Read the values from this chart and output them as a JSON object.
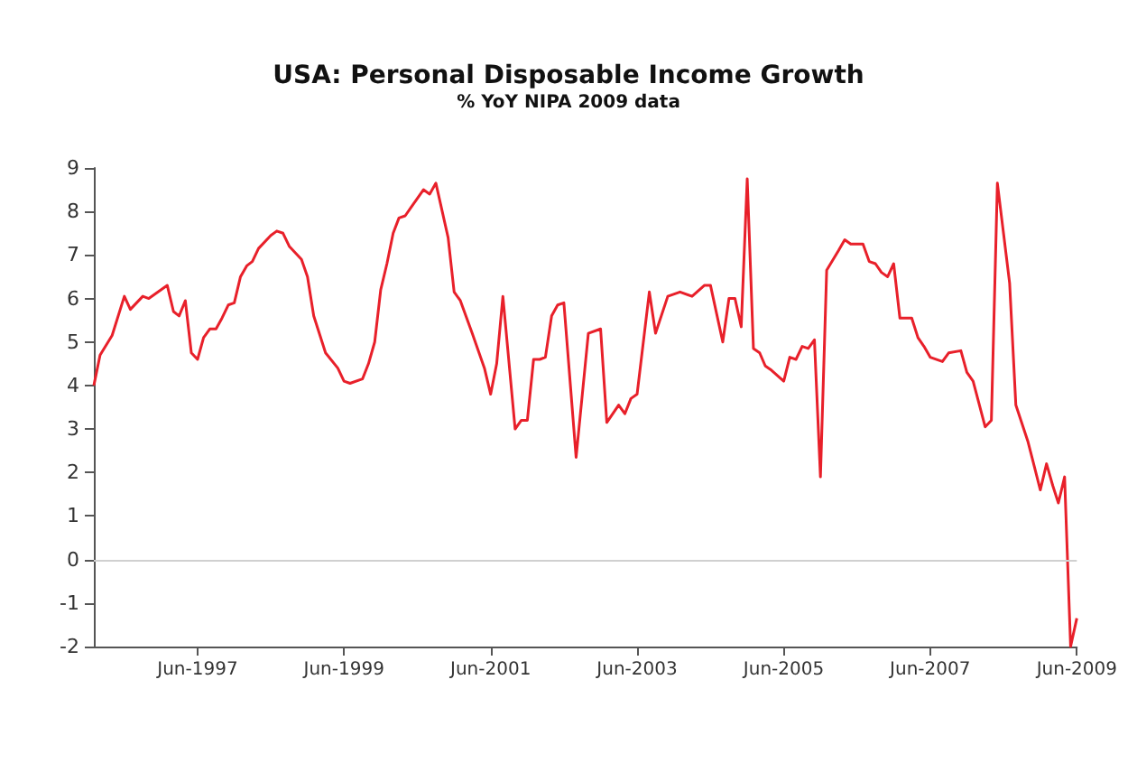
{
  "chart_data": {
    "type": "line",
    "title": "USA: Personal Disposable Income Growth",
    "subtitle": "% YoY NIPA 2009 data",
    "x": [
      "1996-01",
      "1996-02",
      "1996-04",
      "1996-06",
      "1996-07",
      "1996-09",
      "1996-10",
      "1997-01",
      "1997-02",
      "1997-03",
      "1997-04",
      "1997-05",
      "1997-06",
      "1997-07",
      "1997-08",
      "1997-09",
      "1997-10",
      "1997-11",
      "1997-12",
      "1998-01",
      "1998-02",
      "1998-03",
      "1998-04",
      "1998-06",
      "1998-07",
      "1998-08",
      "1998-09",
      "1998-11",
      "1998-12",
      "1999-01",
      "1999-03",
      "1999-05",
      "1999-06",
      "1999-07",
      "1999-09",
      "1999-10",
      "1999-11",
      "1999-12",
      "2000-01",
      "2000-02",
      "2000-03",
      "2000-04",
      "2000-05",
      "2000-06",
      "2000-07",
      "2000-08",
      "2000-09",
      "2000-11",
      "2000-12",
      "2001-01",
      "2001-03",
      "2001-05",
      "2001-06",
      "2001-07",
      "2001-08",
      "2001-10",
      "2001-11",
      "2001-12",
      "2002-01",
      "2002-02",
      "2002-03",
      "2002-04",
      "2002-05",
      "2002-06",
      "2002-08",
      "2002-10",
      "2002-12",
      "2003-01",
      "2003-03",
      "2003-04",
      "2003-05",
      "2003-06",
      "2003-08",
      "2003-09",
      "2003-11",
      "2004-01",
      "2004-03",
      "2004-05",
      "2004-06",
      "2004-08",
      "2004-09",
      "2004-10",
      "2004-11",
      "2004-12",
      "2005-01",
      "2005-02",
      "2005-03",
      "2005-04",
      "2005-06",
      "2005-07",
      "2005-08",
      "2005-09",
      "2005-10",
      "2005-11",
      "2005-12",
      "2006-01",
      "2006-03",
      "2006-04",
      "2006-05",
      "2006-07",
      "2006-08",
      "2006-09",
      "2006-10",
      "2006-11",
      "2006-12",
      "2007-01",
      "2007-03",
      "2007-04",
      "2007-05",
      "2007-06",
      "2007-08",
      "2007-09",
      "2007-11",
      "2007-12",
      "2008-01",
      "2008-03",
      "2008-04",
      "2008-05",
      "2008-07",
      "2008-08",
      "2008-10",
      "2008-12",
      "2009-01",
      "2009-02",
      "2009-03",
      "2009-04",
      "2009-05",
      "2009-06"
    ],
    "series": [
      {
        "color": "#e8202a",
        "values": [
          4.0,
          4.7,
          5.15,
          6.05,
          5.75,
          6.05,
          6.0,
          6.3,
          5.7,
          5.6,
          5.95,
          4.75,
          4.6,
          5.1,
          5.3,
          5.3,
          5.55,
          5.85,
          5.9,
          6.5,
          6.75,
          6.85,
          7.15,
          7.45,
          7.55,
          7.5,
          7.2,
          6.9,
          6.5,
          5.6,
          4.75,
          4.4,
          4.1,
          4.05,
          4.15,
          4.5,
          5.0,
          6.2,
          6.8,
          7.5,
          7.85,
          7.9,
          8.1,
          8.3,
          8.5,
          8.4,
          8.65,
          7.4,
          6.15,
          5.95,
          5.2,
          4.4,
          3.8,
          4.5,
          6.05,
          3.0,
          3.2,
          3.2,
          4.6,
          4.6,
          4.65,
          5.6,
          5.85,
          5.9,
          2.35,
          5.2,
          5.3,
          3.15,
          3.55,
          3.35,
          3.7,
          3.8,
          6.15,
          5.2,
          6.05,
          6.15,
          6.05,
          6.3,
          6.3,
          5.0,
          6.0,
          6.0,
          5.35,
          8.75,
          4.85,
          4.75,
          4.45,
          4.35,
          4.1,
          4.65,
          4.6,
          4.9,
          4.85,
          5.05,
          1.9,
          6.65,
          7.1,
          7.35,
          7.25,
          7.25,
          6.85,
          6.8,
          6.6,
          6.5,
          6.8,
          5.55,
          5.55,
          5.1,
          4.9,
          4.65,
          4.55,
          4.75,
          4.8,
          4.3,
          4.1,
          3.05,
          3.2,
          8.65,
          6.35,
          3.55,
          2.7,
          1.6,
          2.2,
          1.7,
          1.3,
          1.9,
          -2.0,
          -1.35
        ]
      }
    ],
    "xlim": [
      "1996-01",
      "2009-06"
    ],
    "xticks": [
      {
        "value": "1997-06",
        "label": "Jun-1997"
      },
      {
        "value": "1999-06",
        "label": "Jun-1999"
      },
      {
        "value": "2001-06",
        "label": "Jun-2001"
      },
      {
        "value": "2003-06",
        "label": "Jun-2003"
      },
      {
        "value": "2005-06",
        "label": "Jun-2005"
      },
      {
        "value": "2007-06",
        "label": "Jun-2007"
      },
      {
        "value": "2009-06",
        "label": "Jun-2009"
      }
    ],
    "ylim": [
      -2,
      9
    ],
    "yticks": [
      -2,
      -1,
      0,
      1,
      2,
      3,
      4,
      5,
      6,
      7,
      8,
      9
    ],
    "ref_lines": [
      {
        "axis": "y",
        "value": 0,
        "color": "#d0d0d0"
      }
    ],
    "grid": false,
    "marker": "none",
    "line_style": "solid"
  }
}
